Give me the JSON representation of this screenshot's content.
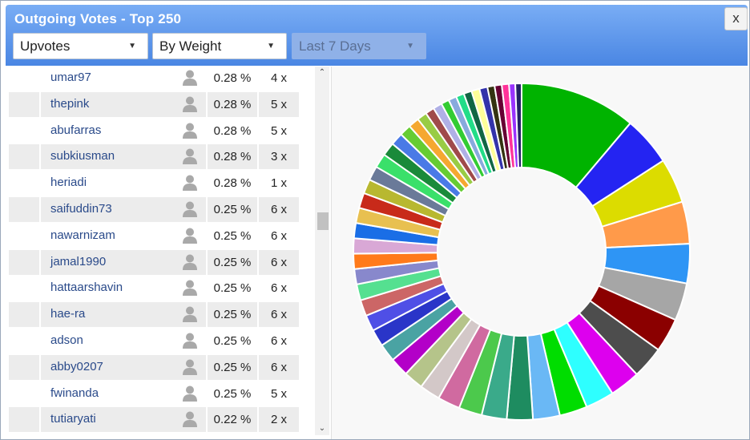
{
  "dialog": {
    "title": "Outgoing Votes - Top 250",
    "close_label": "x"
  },
  "filters": {
    "type": "Upvotes",
    "sort": "By Weight",
    "period": "Last 7 Days"
  },
  "rows": [
    {
      "name": "umar97",
      "pct": "0.28 %",
      "count": "4 x"
    },
    {
      "name": "thepink",
      "pct": "0.28 %",
      "count": "5 x"
    },
    {
      "name": "abufarras",
      "pct": "0.28 %",
      "count": "5 x"
    },
    {
      "name": "subkiusman",
      "pct": "0.28 %",
      "count": "3 x"
    },
    {
      "name": "heriadi",
      "pct": "0.28 %",
      "count": "1 x"
    },
    {
      "name": "saifuddin73",
      "pct": "0.25 %",
      "count": "6 x"
    },
    {
      "name": "nawarnizam",
      "pct": "0.25 %",
      "count": "6 x"
    },
    {
      "name": "jamal1990",
      "pct": "0.25 %",
      "count": "6 x"
    },
    {
      "name": "hattaarshavin",
      "pct": "0.25 %",
      "count": "6 x"
    },
    {
      "name": "hae-ra",
      "pct": "0.25 %",
      "count": "6 x"
    },
    {
      "name": "adson",
      "pct": "0.25 %",
      "count": "6 x"
    },
    {
      "name": "abby0207",
      "pct": "0.25 %",
      "count": "6 x"
    },
    {
      "name": "fwinanda",
      "pct": "0.25 %",
      "count": "5 x"
    },
    {
      "name": "tutiaryati",
      "pct": "0.22 %",
      "count": "2 x"
    }
  ],
  "icons": {
    "user": "user-silhouette-icon",
    "close": "close-icon",
    "caret": "caret-down-icon"
  },
  "chart_data": {
    "type": "pie",
    "donut": true,
    "slices": [
      {
        "value": 13.0,
        "color": "#00b300"
      },
      {
        "value": 5.5,
        "color": "#2424f2"
      },
      {
        "value": 5.0,
        "color": "#dcdc00"
      },
      {
        "value": 4.7,
        "color": "#ff9a4a"
      },
      {
        "value": 4.4,
        "color": "#2e95f5"
      },
      {
        "value": 4.2,
        "color": "#a6a6a6"
      },
      {
        "value": 3.8,
        "color": "#8b0000"
      },
      {
        "value": 3.6,
        "color": "#4d4d4d"
      },
      {
        "value": 3.4,
        "color": "#dd00ee"
      },
      {
        "value": 3.2,
        "color": "#2effff"
      },
      {
        "value": 3.1,
        "color": "#00dd00"
      },
      {
        "value": 3.0,
        "color": "#6ab8f5"
      },
      {
        "value": 2.9,
        "color": "#1e8c60"
      },
      {
        "value": 2.8,
        "color": "#3aaa8a"
      },
      {
        "value": 2.6,
        "color": "#4cc94c"
      },
      {
        "value": 2.5,
        "color": "#d06aa0"
      },
      {
        "value": 2.3,
        "color": "#d3c8c8"
      },
      {
        "value": 2.2,
        "color": "#b5c48a"
      },
      {
        "value": 2.1,
        "color": "#b300c8"
      },
      {
        "value": 2.0,
        "color": "#4aa3a3"
      },
      {
        "value": 1.9,
        "color": "#2a35c8"
      },
      {
        "value": 1.8,
        "color": "#4f4fe6"
      },
      {
        "value": 1.8,
        "color": "#cc6666"
      },
      {
        "value": 1.8,
        "color": "#55e090"
      },
      {
        "value": 1.7,
        "color": "#8888cc"
      },
      {
        "value": 1.7,
        "color": "#ff7a1a"
      },
      {
        "value": 1.7,
        "color": "#d9a8d6"
      },
      {
        "value": 1.7,
        "color": "#1a6ee6"
      },
      {
        "value": 1.7,
        "color": "#e8c050"
      },
      {
        "value": 1.7,
        "color": "#c82a1a"
      },
      {
        "value": 1.6,
        "color": "#b8b830"
      },
      {
        "value": 1.6,
        "color": "#6a7a99"
      },
      {
        "value": 1.6,
        "color": "#3ae06a"
      },
      {
        "value": 1.5,
        "color": "#1a8a3a"
      },
      {
        "value": 1.4,
        "color": "#4a7ae6"
      },
      {
        "value": 1.3,
        "color": "#66cc33"
      },
      {
        "value": 1.2,
        "color": "#f5a830"
      },
      {
        "value": 1.1,
        "color": "#99cc44"
      },
      {
        "value": 1.0,
        "color": "#a04a4a"
      },
      {
        "value": 1.0,
        "color": "#b0b0e6"
      },
      {
        "value": 0.9,
        "color": "#33cc33"
      },
      {
        "value": 0.9,
        "color": "#88aadd"
      },
      {
        "value": 0.9,
        "color": "#22dd88"
      },
      {
        "value": 0.9,
        "color": "#116644"
      },
      {
        "value": 0.9,
        "color": "#ffff99"
      },
      {
        "value": 0.9,
        "color": "#3333aa"
      },
      {
        "value": 0.8,
        "color": "#333311"
      },
      {
        "value": 0.8,
        "color": "#660033"
      },
      {
        "value": 0.8,
        "color": "#ff3399"
      },
      {
        "value": 0.7,
        "color": "#9933ff"
      },
      {
        "value": 0.7,
        "color": "#222266"
      }
    ]
  }
}
